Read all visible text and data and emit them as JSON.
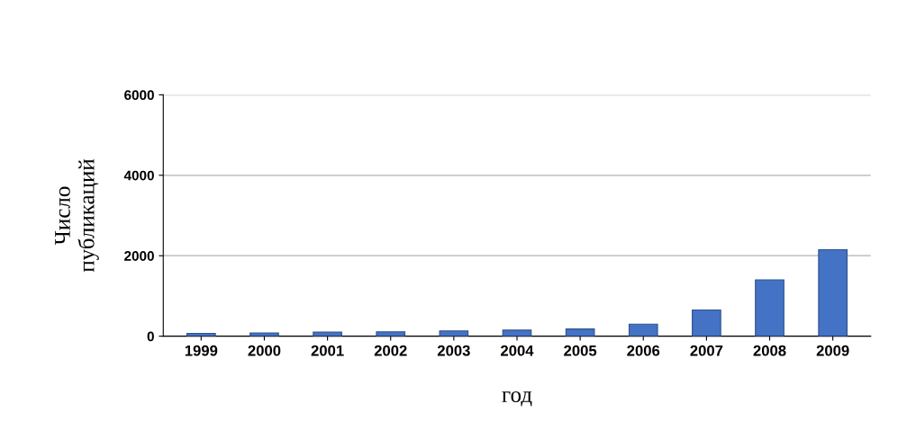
{
  "chart_data": {
    "type": "bar",
    "categories": [
      "1999",
      "2000",
      "2001",
      "2002",
      "2003",
      "2004",
      "2005",
      "2006",
      "2007",
      "2008",
      "2009"
    ],
    "values": [
      70,
      80,
      100,
      110,
      130,
      150,
      180,
      300,
      650,
      1400,
      2150
    ],
    "color": "#4472c4",
    "xlabel": "год",
    "ylabel": "Число\nпубликаций",
    "ylim": [
      0,
      6000
    ],
    "yticks": [
      0,
      2000,
      4000,
      6000
    ],
    "grid": "y"
  }
}
